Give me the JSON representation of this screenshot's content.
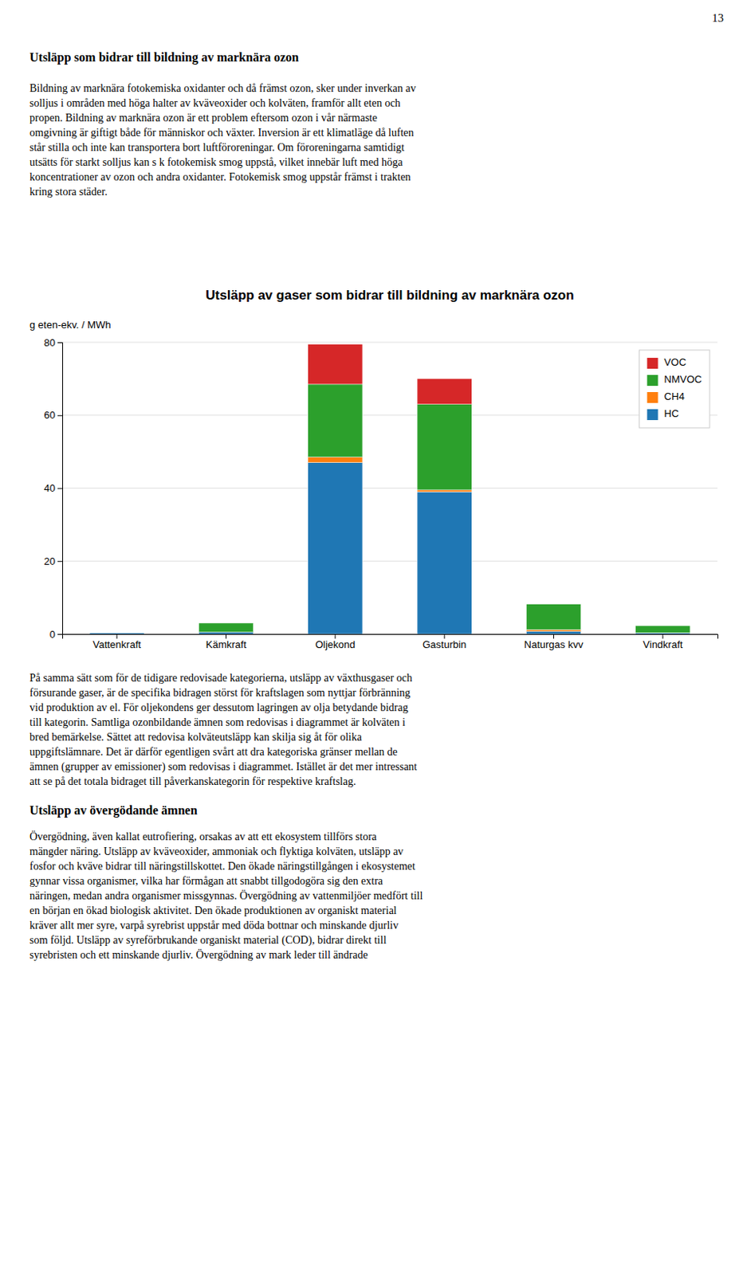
{
  "page_num": "13",
  "heading1": "Utsläpp som bidrar till bildning av marknära ozon",
  "body1_lines": [
    "Bildning av marknära fotokemiska oxidanter och då främst ozon, sker under inverkan av",
    "solljus i områden med höga halter av kväveoxider och kolväten, framför allt eten och",
    "propen. Bildning av marknära ozon är ett problem eftersom ozon i vår närmaste",
    "omgivning är giftigt både för människor och växter. Inversion är ett klimatläge då luften",
    "står stilla och inte kan transportera bort luftföroreningar. Om föroreningarna samtidigt",
    "utsätts för starkt solljus kan s k fotokemisk smog uppstå, vilket innebär luft med höga",
    "koncentrationer av ozon och andra oxidanter. Fotokemisk smog uppstår främst i trakten",
    "kring stora städer."
  ],
  "chart_data": {
    "type": "bar",
    "title": "Utsläpp av gaser som bidrar till bildning av marknära ozon",
    "ylabel": "g eten-ekv. / MWh",
    "categories": [
      "Vattenkraft",
      "Kämkraft",
      "Oljekond",
      "Gasturbin",
      "Naturgas kvv",
      "Vindkraft"
    ],
    "series": [
      {
        "name": "HC",
        "values": [
          0.3,
          0.5,
          47.0,
          39.0,
          0.7,
          0.3
        ]
      },
      {
        "name": "CH4",
        "values": [
          0.0,
          0.0,
          1.5,
          0.5,
          0.5,
          0.0
        ]
      },
      {
        "name": "NMVOC",
        "values": [
          0.0,
          2.5,
          20.0,
          23.5,
          7.0,
          2.0
        ]
      },
      {
        "name": "VOC",
        "values": [
          0.0,
          0.0,
          11.0,
          7.0,
          0.0,
          0.0
        ]
      }
    ],
    "stacked": true,
    "ylim": [
      0,
      80
    ],
    "yticks": [
      0,
      20,
      40,
      60,
      80
    ],
    "grid": true,
    "legend": "upper right"
  },
  "body2_lines": [
    "På samma sätt som för de tidigare redovisade kategorierna, utsläpp av växthusgaser och",
    "försurande gaser, är de specifika bidragen störst för kraftslagen som nyttjar förbränning",
    "vid produktion av el. För oljekondens ger dessutom lagringen av olja betydande bidrag",
    "till kategorin. Samtliga ozonbildande ämnen som redovisas i diagrammet är kolväten i",
    "bred bemärkelse. Sättet att redovisa kolväteutsläpp kan skilja sig åt för olika",
    "uppgiftslämnare. Det är därför egentligen svårt att dra kategoriska gränser mellan de",
    "ämnen (grupper av emissioner) som redovisas i diagrammet. Istället är det mer intressant",
    "att se på det totala bidraget till påverkanskategorin för respektive kraftslag."
  ],
  "heading2": "Utsläpp av övergödande ämnen",
  "body3_lines": [
    "Övergödning, även kallat eutrofiering, orsakas av att ett ekosystem tillförs stora",
    "mängder näring. Utsläpp av kväveoxider, ammoniak och flyktiga kolväten, utsläpp av",
    "fosfor och kväve bidrar till näringstillskottet. Den ökade näringstillgången i ekosystemet",
    "gynnar vissa organismer, vilka har förmågan att snabbt tillgodogöra sig den extra",
    "näringen, medan andra organismer missgynnas. Övergödning av vattenmiljöer medfört till",
    "en början en ökad biologisk aktivitet. Den ökade produktionen av organiskt material",
    "kräver allt mer syre, varpå syrebrist uppstår med döda bottnar och minskande djurliv",
    "som följd. Utsläpp av syreförbrukande organiskt material (COD), bidrar direkt till",
    "syrebristen och ett minskande djurliv. Övergödning av mark leder till ändrade"
  ]
}
